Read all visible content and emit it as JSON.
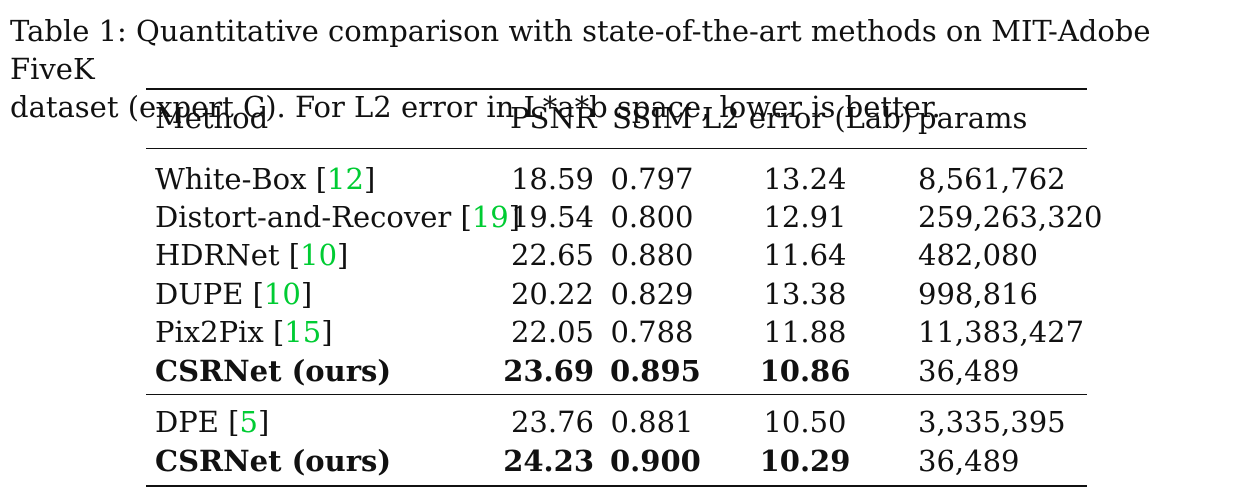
{
  "caption": {
    "line1": "Table 1: Quantitative comparison with state-of-the-art methods on MIT-Adobe FiveK",
    "line2": "dataset (expert C). For L2 error in L*a*b space, lower is better."
  },
  "table": {
    "headers": {
      "method": "Method",
      "psnr": "PSNR",
      "ssim": "SSIM",
      "l2": "L2 error (Lab)",
      "params": "params"
    },
    "rows": [
      {
        "name": "White-Box",
        "bracket_open": "[",
        "ref": "12",
        "bracket_close": "]",
        "psnr": "18.59",
        "ssim": "0.797",
        "l2": "13.24",
        "params": "8,561,762"
      },
      {
        "name": "Distort-and-Recover",
        "bracket_open": "[",
        "ref": "19",
        "bracket_close": "]",
        "psnr": "19.54",
        "ssim": "0.800",
        "l2": "12.91",
        "params": "259,263,320"
      },
      {
        "name": "HDRNet",
        "bracket_open": "[",
        "ref": "10",
        "bracket_close": "]",
        "psnr": "22.65",
        "ssim": "0.880",
        "l2": "11.64",
        "params": "482,080"
      },
      {
        "name": "DUPE",
        "bracket_open": "[",
        "ref": "10",
        "bracket_close": "]",
        "psnr": "20.22",
        "ssim": "0.829",
        "l2": "13.38",
        "params": "998,816"
      },
      {
        "name": "Pix2Pix",
        "bracket_open": "[",
        "ref": "15",
        "bracket_close": "]",
        "psnr": "22.05",
        "ssim": "0.788",
        "l2": "11.88",
        "params": "11,383,427"
      },
      {
        "name": "CSRNet (ours)",
        "psnr": "23.69",
        "ssim": "0.895",
        "l2": "10.86",
        "params": "36,489"
      },
      {
        "name": "DPE",
        "bracket_open": "[",
        "ref": "5",
        "bracket_close": "]",
        "psnr": "23.76",
        "ssim": "0.881",
        "l2": "10.50",
        "params": "3,335,395"
      },
      {
        "name": "CSRNet (ours)",
        "psnr": "24.23",
        "ssim": "0.900",
        "l2": "10.29",
        "params": "36,489"
      }
    ]
  }
}
